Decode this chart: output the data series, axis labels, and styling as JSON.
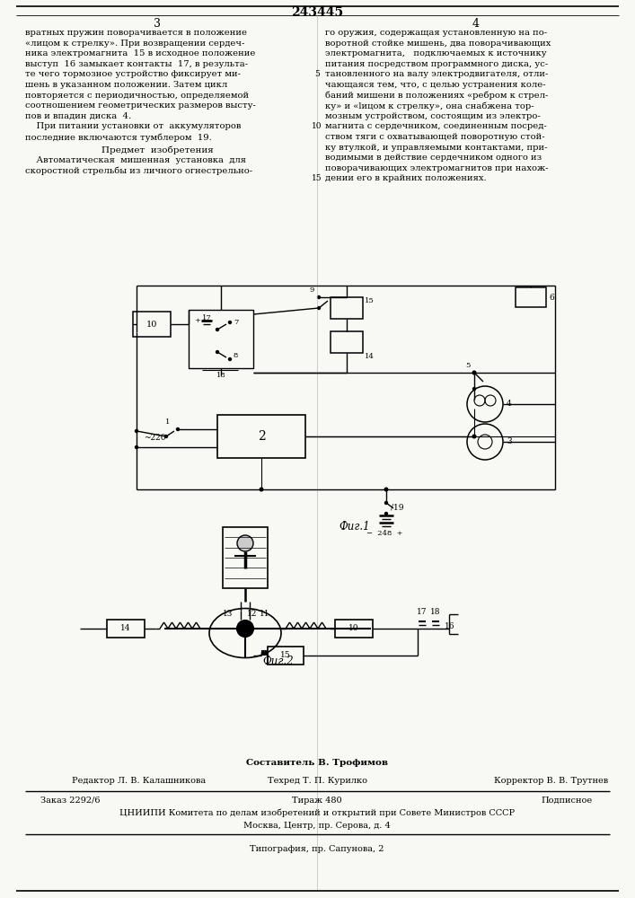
{
  "patent_number": "243445",
  "background_color": "#f8f8f4",
  "text_color": "#1a1a1a",
  "fig1_caption": "Фиг.1",
  "fig2_caption": "Фиг.2",
  "footer_composer": "Составитель В. Трофимов",
  "footer_editor": "Редактор Л. В. Калашникова",
  "footer_techred": "Техред Т. П. Курилко",
  "footer_corrector": "Корректор В. В. Трутнев",
  "footer_order": "Заказ 2292/6",
  "footer_circulation": "Тираж 480",
  "footer_subscription": "Подписное",
  "footer_cniipii": "ЦНИИПИ Комитета по делам изобретений и открытий при Совете Министров СССР",
  "footer_address": "Москва, Центр, пр. Серова, д. 4",
  "footer_typography": "Типография, пр. Сапунова, 2"
}
